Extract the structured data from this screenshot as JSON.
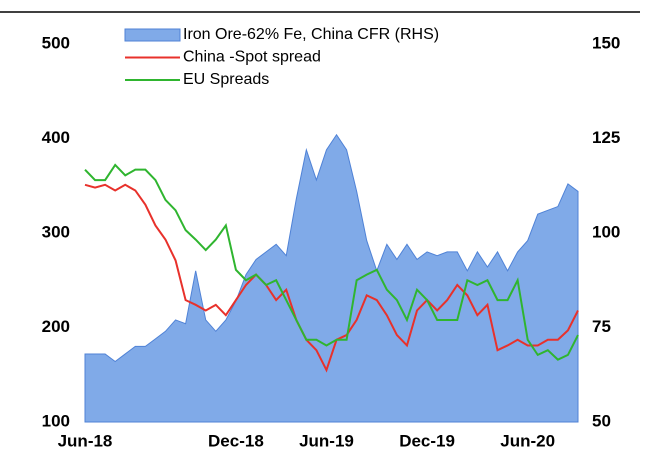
{
  "chart_data": {
    "type": "line",
    "categories": [
      "Jun-18",
      null,
      null,
      null,
      null,
      null,
      null,
      null,
      null,
      null,
      null,
      null,
      null,
      null,
      null,
      "Dec-18",
      null,
      null,
      null,
      null,
      null,
      null,
      null,
      null,
      "Jun-19",
      null,
      null,
      null,
      null,
      null,
      null,
      null,
      null,
      null,
      "Dec-19",
      null,
      null,
      null,
      null,
      null,
      null,
      null,
      null,
      null,
      "Jun-20",
      null,
      null,
      null,
      null,
      null
    ],
    "series": [
      {
        "name": "Iron Ore-62% Fe, China CFR (RHS)",
        "type": "area",
        "axis": "y2",
        "color": "#80aae8",
        "edge_color": "#4f82d6",
        "values": [
          68,
          68,
          68,
          66,
          68,
          70,
          70,
          72,
          74,
          77,
          76,
          90,
          77,
          74,
          77,
          82,
          89,
          93,
          95,
          97,
          94,
          109,
          122,
          114,
          122,
          126,
          122,
          111,
          98,
          90,
          97,
          93,
          97,
          93,
          95,
          94,
          95,
          95,
          90,
          95,
          91,
          95,
          90,
          95,
          98,
          105,
          106,
          107,
          113,
          111
        ]
      },
      {
        "name": "China -Spot spread",
        "type": "line",
        "axis": "y",
        "color": "#e8312b",
        "values": [
          351,
          348,
          351,
          345,
          351,
          345,
          330,
          308,
          293,
          271,
          229,
          224,
          218,
          224,
          213,
          229,
          245,
          256,
          245,
          229,
          240,
          208,
          187,
          176,
          155,
          187,
          192,
          208,
          234,
          229,
          213,
          192,
          181,
          218,
          229,
          218,
          229,
          245,
          234,
          213,
          224,
          176,
          181,
          187,
          181,
          181,
          187,
          187,
          197,
          218
        ]
      },
      {
        "name": "EU Spreads",
        "type": "line",
        "axis": "y",
        "color": "#2fb52f",
        "values": [
          367,
          356,
          356,
          372,
          361,
          367,
          367,
          356,
          335,
          324,
          303,
          293,
          282,
          293,
          308,
          261,
          250,
          256,
          245,
          250,
          229,
          208,
          187,
          187,
          181,
          187,
          187,
          250,
          256,
          261,
          240,
          229,
          208,
          240,
          229,
          208,
          208,
          208,
          250,
          245,
          250,
          229,
          229,
          250,
          187,
          171,
          176,
          166,
          171,
          192
        ]
      }
    ],
    "ylim": [
      100,
      500
    ],
    "yticks": [
      100,
      200,
      300,
      400,
      500
    ],
    "y2lim": [
      50,
      150
    ],
    "y2ticks": [
      50,
      75,
      100,
      125,
      150
    ],
    "legend": "top"
  }
}
